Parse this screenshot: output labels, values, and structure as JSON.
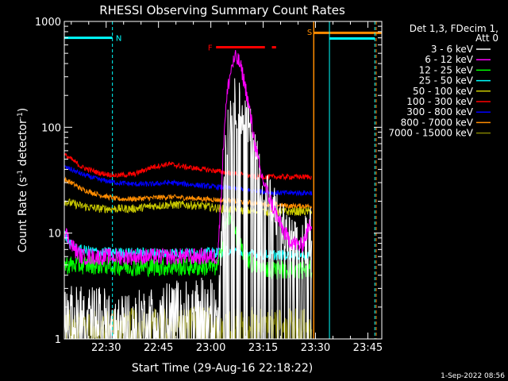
{
  "chart_data": {
    "type": "line",
    "title": "RHESSI Observing Summary Count Rates",
    "xlabel": "Start Time (29-Aug-16 22:18:22)",
    "ylabel": "Count Rate (s",
    "ylabel_sup1": "-1",
    "ylabel_mid": " detector",
    "ylabel_sup2": "-1",
    "ylabel_end": ")",
    "yscale": "log",
    "ylim": [
      1,
      1000
    ],
    "xlim_minutes": [
      0,
      91
    ],
    "x_ticks": [
      {
        "minute": 12,
        "label": "22:30"
      },
      {
        "minute": 27,
        "label": "22:45"
      },
      {
        "minute": 42,
        "label": "23:00"
      },
      {
        "minute": 57,
        "label": "23:15"
      },
      {
        "minute": 72,
        "label": "23:30"
      },
      {
        "minute": 87,
        "label": "23:45"
      }
    ],
    "y_ticks": [
      {
        "value": 1,
        "label": "1"
      },
      {
        "value": 10,
        "label": "10"
      },
      {
        "value": 100,
        "label": "100"
      },
      {
        "value": 1000,
        "label": "1000"
      }
    ],
    "legend": {
      "header": [
        "Det 1,3, FDecim 1,",
        "Att 0"
      ],
      "placement": "right"
    },
    "series": [
      {
        "name": "3 - 6 keV",
        "color": "#ffffff",
        "x": [
          0,
          10,
          20,
          30,
          40,
          44,
          45,
          46,
          47,
          48,
          49,
          50,
          51,
          52,
          53,
          54,
          55,
          56,
          58,
          60,
          62,
          64,
          66,
          68,
          70,
          71
        ],
        "y": [
          1.8,
          1.8,
          1.6,
          2.0,
          2.2,
          2.0,
          10,
          60,
          110,
          150,
          170,
          160,
          140,
          120,
          100,
          75,
          50,
          35,
          24,
          17,
          12,
          9,
          7.5,
          7,
          10,
          11
        ]
      },
      {
        "name": "6 - 12 keV",
        "color": "#ff00ff",
        "x": [
          0,
          1,
          2,
          3,
          4,
          5,
          10,
          20,
          30,
          40,
          44,
          45,
          46,
          47,
          48,
          49,
          50,
          51,
          52,
          53,
          54,
          55,
          56,
          58,
          60,
          62,
          64,
          66,
          68,
          70,
          71
        ],
        "y": [
          11,
          9,
          8,
          7,
          6.5,
          6,
          6,
          6,
          6,
          6,
          6,
          25,
          120,
          250,
          380,
          450,
          420,
          330,
          230,
          150,
          95,
          60,
          40,
          25,
          17,
          12,
          9,
          8,
          7.5,
          11,
          13
        ]
      },
      {
        "name": "12 - 25 keV",
        "color": "#00ff00",
        "x": [
          0,
          10,
          20,
          30,
          40,
          44,
          45,
          46,
          47,
          48,
          49,
          50,
          52,
          54,
          56,
          58,
          60,
          65,
          70,
          71
        ],
        "y": [
          5,
          5,
          4.8,
          4.8,
          4.8,
          4.8,
          7,
          11,
          14,
          13,
          10,
          8,
          6,
          5,
          4.8,
          4.6,
          4.5,
          4.5,
          4.5,
          4.5
        ]
      },
      {
        "name": "25 - 50 keV",
        "color": "#00ffff",
        "x": [
          0,
          1,
          2,
          4,
          10,
          20,
          30,
          40,
          45,
          48,
          50,
          55,
          60,
          65,
          70,
          71
        ],
        "y": [
          10,
          8.5,
          7.5,
          7,
          6.6,
          6.5,
          6.5,
          6.5,
          6.6,
          7,
          6.5,
          6.3,
          6.2,
          6.2,
          6.2,
          6.2
        ]
      },
      {
        "name": "50 - 100 keV",
        "color": "#c8c800",
        "x": [
          0,
          5,
          10,
          15,
          20,
          25,
          30,
          35,
          40,
          45,
          50,
          55,
          60,
          65,
          70,
          71
        ],
        "y": [
          20,
          18,
          17,
          17,
          17,
          18,
          18.5,
          18.5,
          18,
          17,
          16.5,
          16,
          16,
          16,
          16,
          16
        ]
      },
      {
        "name": "100 - 300 keV",
        "color": "#ff0000",
        "x": [
          0,
          2,
          5,
          10,
          15,
          20,
          25,
          30,
          35,
          40,
          45,
          50,
          55,
          60,
          65,
          70,
          71
        ],
        "y": [
          55,
          50,
          42,
          37,
          35,
          36,
          42,
          45,
          42,
          40,
          38,
          36,
          34,
          34,
          34,
          34,
          34
        ]
      },
      {
        "name": "300 - 800 keV",
        "color": "#0000ff",
        "x": [
          0,
          2,
          5,
          10,
          15,
          20,
          25,
          30,
          35,
          40,
          45,
          50,
          55,
          60,
          65,
          70,
          71
        ],
        "y": [
          42,
          40,
          36,
          32,
          30,
          29,
          29,
          30,
          29,
          28,
          27,
          26,
          25,
          24,
          24,
          24,
          24
        ]
      },
      {
        "name": "800 - 7000 keV",
        "color": "#ff8c00",
        "x": [
          0,
          2,
          5,
          10,
          15,
          20,
          25,
          30,
          35,
          40,
          45,
          50,
          55,
          60,
          65,
          70,
          71
        ],
        "y": [
          32,
          30,
          26,
          23,
          21,
          21,
          21.5,
          22,
          21.5,
          21,
          20.5,
          20,
          19,
          18.5,
          18,
          18,
          18
        ]
      },
      {
        "name": "7000 - 15000 keV",
        "color": "#808000",
        "x": [
          0,
          5,
          10,
          15,
          20,
          25,
          30,
          35,
          40,
          45,
          50,
          55,
          60,
          65,
          70,
          71
        ],
        "y": [
          1.5,
          1.5,
          1.4,
          1.5,
          1.5,
          1.5,
          1.5,
          1.5,
          1.6,
          1.5,
          1.5,
          1.5,
          1.5,
          1.5,
          1.5,
          1.5
        ]
      }
    ],
    "annotations": [
      {
        "label": "N",
        "color": "#00ffff"
      },
      {
        "label": "F",
        "color": "#ff0000"
      },
      {
        "label": "S",
        "color": "#ff8c00"
      }
    ],
    "timestamp": "1-Sep-2022 08:56"
  }
}
